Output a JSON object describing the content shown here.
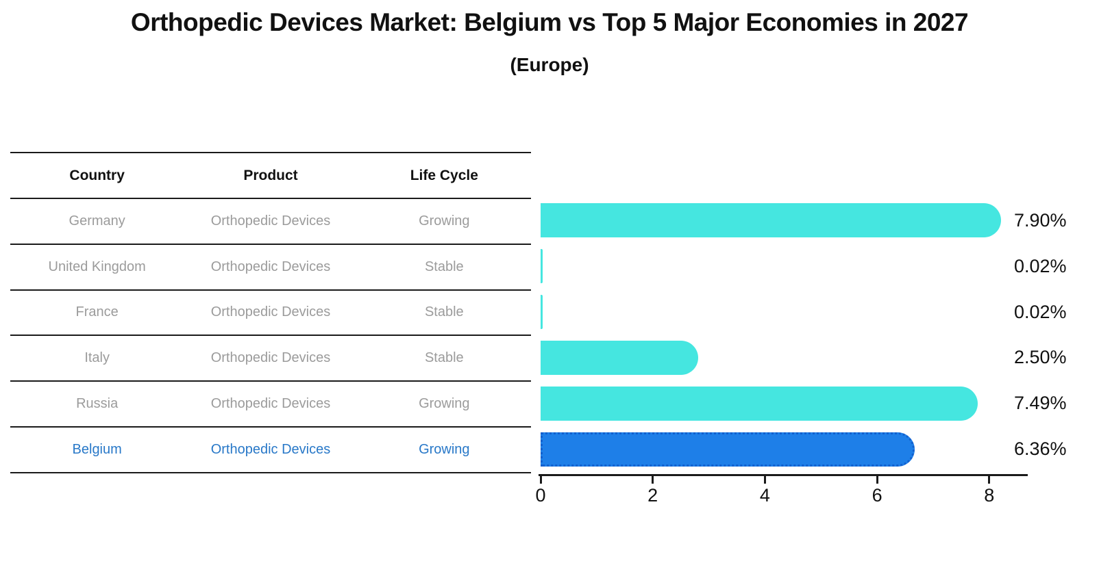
{
  "title": "Orthopedic Devices Market: Belgium vs Top 5 Major Economies in 2027",
  "subtitle": "(Europe)",
  "table": {
    "headers": [
      "Country",
      "Product",
      "Life Cycle"
    ],
    "rows": [
      {
        "country": "Germany",
        "product": "Orthopedic Devices",
        "life_cycle": "Growing",
        "highlighted": false
      },
      {
        "country": "United Kingdom",
        "product": "Orthopedic Devices",
        "life_cycle": "Stable",
        "highlighted": false
      },
      {
        "country": "France",
        "product": "Orthopedic Devices",
        "life_cycle": "Stable",
        "highlighted": false
      },
      {
        "country": "Italy",
        "product": "Orthopedic Devices",
        "life_cycle": "Stable",
        "highlighted": false
      },
      {
        "country": "Russia",
        "product": "Orthopedic Devices",
        "life_cycle": "Growing",
        "highlighted": false
      },
      {
        "country": "Belgium",
        "product": "Orthopedic Devices",
        "life_cycle": "Growing",
        "highlighted": true
      }
    ]
  },
  "chart_data": {
    "type": "bar",
    "orientation": "horizontal",
    "title": "Orthopedic Devices Market: Belgium vs Top 5 Major Economies in 2027",
    "subtitle": "(Europe)",
    "categories": [
      "Germany",
      "United Kingdom",
      "France",
      "Italy",
      "Russia",
      "Belgium"
    ],
    "values": [
      7.9,
      0.02,
      0.02,
      2.5,
      7.49,
      6.36
    ],
    "value_labels": [
      "7.90%",
      "0.02%",
      "0.02%",
      "2.50%",
      "7.49%",
      "6.36%"
    ],
    "xlabel": "",
    "ylabel": "",
    "xlim": [
      0,
      8.65
    ],
    "xticks": [
      0,
      2,
      4,
      6,
      8
    ],
    "grid": false,
    "legend": false,
    "highlight_category": "Belgium"
  },
  "styles": {
    "ink": "#111111",
    "line_color": "#1a1a1a",
    "table_text": "#9b9b9b",
    "highlight_text": "#2878c8",
    "bar_color": "#45e6e0",
    "highlight_bar_color": "#1e7fe8",
    "highlight_bar_edge": "#1260ce"
  }
}
